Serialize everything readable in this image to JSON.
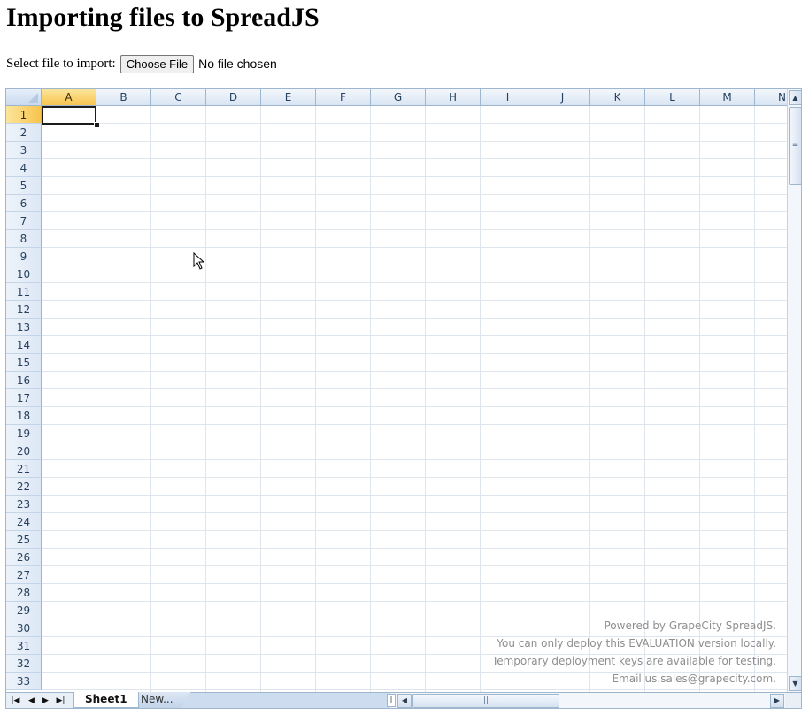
{
  "page": {
    "title": "Importing files to SpreadJS",
    "import_label": "Select file to import:",
    "choose_file_label": "Choose File",
    "no_file_label": "No file chosen"
  },
  "spread": {
    "columns": [
      "A",
      "B",
      "C",
      "D",
      "E",
      "F",
      "G",
      "H",
      "I",
      "J",
      "K",
      "L",
      "M",
      "N"
    ],
    "rows": [
      "1",
      "2",
      "3",
      "4",
      "5",
      "6",
      "7",
      "8",
      "9",
      "10",
      "11",
      "12",
      "13",
      "14",
      "15",
      "16",
      "17",
      "18",
      "19",
      "20",
      "21",
      "22",
      "23",
      "24",
      "25",
      "26",
      "27",
      "28",
      "29",
      "30",
      "31",
      "32",
      "33"
    ],
    "active_column": "A",
    "active_row": "1",
    "watermark": [
      "Powered by GrapeCity SpreadJS.",
      "You can only deploy this EVALUATION version locally.",
      "Temporary deployment keys are available for testing.",
      "Email us.sales@grapecity.com."
    ],
    "tabs": {
      "active": "Sheet1",
      "new": "New..."
    },
    "icons": {
      "first": "first-sheet-icon",
      "prev": "previous-sheet-icon",
      "next": "next-sheet-icon",
      "last": "last-sheet-icon",
      "scroll_up": "scroll-up-icon",
      "scroll_down": "scroll-down-icon",
      "scroll_left": "scroll-left-icon",
      "scroll_right": "scroll-right-icon"
    }
  },
  "colors": {
    "header_blue": "#d8e4f3",
    "header_active": "#f8c44e",
    "grid_line": "#dfe5ec",
    "border": "#9eb6ce"
  }
}
